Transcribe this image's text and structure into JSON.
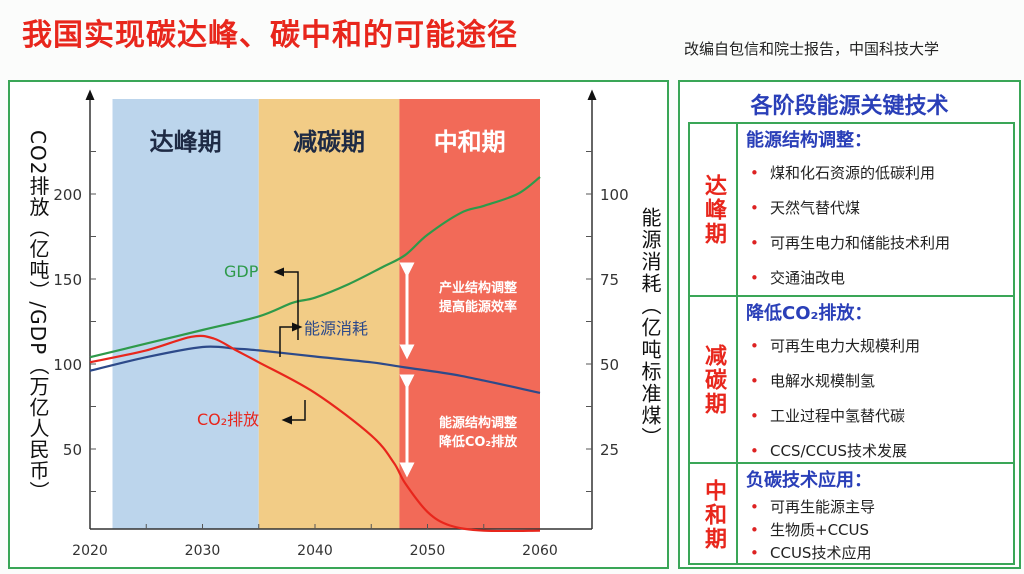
{
  "header": {
    "title": "我国实现碳达峰、碳中和的可能途径",
    "source": "改编自包信和院士报告，中国科技大学"
  },
  "chart_data": {
    "type": "line",
    "title": "",
    "x_ticks": [
      "2020",
      "2030",
      "2040",
      "2050",
      "2060"
    ],
    "xlim": [
      2020,
      2060
    ],
    "left_axis": {
      "label": "CO2排放（亿吨）/GDP（万亿人民币）",
      "ylim": [
        0,
        225
      ],
      "ticks": [
        "50",
        "100",
        "150",
        "200"
      ]
    },
    "right_axis": {
      "label": "能源消耗（亿吨标准煤）",
      "ylim": [
        0,
        112.5
      ],
      "ticks": [
        "25",
        "50",
        "75",
        "100"
      ]
    },
    "phases": [
      {
        "name": "达峰期",
        "start": 2022,
        "end": 2035,
        "color": "#bcd5ec"
      },
      {
        "name": "减碳期",
        "start": 2035,
        "end": 2047.5,
        "color": "#f2cc86"
      },
      {
        "name": "中和期",
        "start": 2047.5,
        "end": 2060,
        "color": "#f26a58"
      }
    ],
    "series": [
      {
        "name": "GDP",
        "axis": "left",
        "color": "#2e9a4a",
        "x": [
          2020,
          2025,
          2030,
          2035,
          2038,
          2040,
          2043,
          2046,
          2048,
          2050,
          2053,
          2055,
          2058,
          2060
        ],
        "y": [
          104,
          112,
          120,
          128,
          136,
          139,
          147,
          157,
          164,
          176,
          189,
          193,
          200,
          210
        ]
      },
      {
        "name": "能源消耗",
        "axis": "right",
        "color": "#2d4a8a",
        "x": [
          2020,
          2025,
          2030,
          2033,
          2035,
          2040,
          2045,
          2048,
          2053,
          2060
        ],
        "y": [
          48,
          52,
          55,
          54.5,
          54,
          52.2,
          50.5,
          49,
          46.5,
          41.5
        ]
      },
      {
        "name": "CO₂排放",
        "axis": "left",
        "color": "#e8261c",
        "x": [
          2020,
          2025,
          2029,
          2031,
          2033,
          2035,
          2040,
          2045,
          2047,
          2048,
          2050,
          2052,
          2055,
          2060
        ],
        "y": [
          101,
          108,
          116,
          115,
          108,
          101,
          83,
          58,
          42,
          30,
          13,
          5,
          2,
          2
        ]
      }
    ],
    "annotations": [
      {
        "text1": "产业结构调整",
        "text2": "提高能源效率"
      },
      {
        "text1": "能源结构调整",
        "text2": "降低CO₂排放"
      }
    ]
  },
  "tech": {
    "title": "各阶段能源关键技术",
    "rows": [
      {
        "phase": "达峰期",
        "heading": "能源结构调整：",
        "items": [
          "煤和化石资源的低碳利用",
          "天然气替代煤",
          "可再生电力和储能技术利用",
          "交通油改电"
        ]
      },
      {
        "phase": "减碳期",
        "heading": "降低CO₂排放：",
        "items": [
          "可再生电力大规模利用",
          "电解水规模制氢",
          "工业过程中氢替代碳",
          "CCS/CCUS技术发展"
        ]
      },
      {
        "phase": "中和期",
        "heading": "负碳技术应用：",
        "items": [
          "可再生能源主导",
          "生物质+CCUS",
          "CCUS技术应用"
        ]
      }
    ]
  }
}
